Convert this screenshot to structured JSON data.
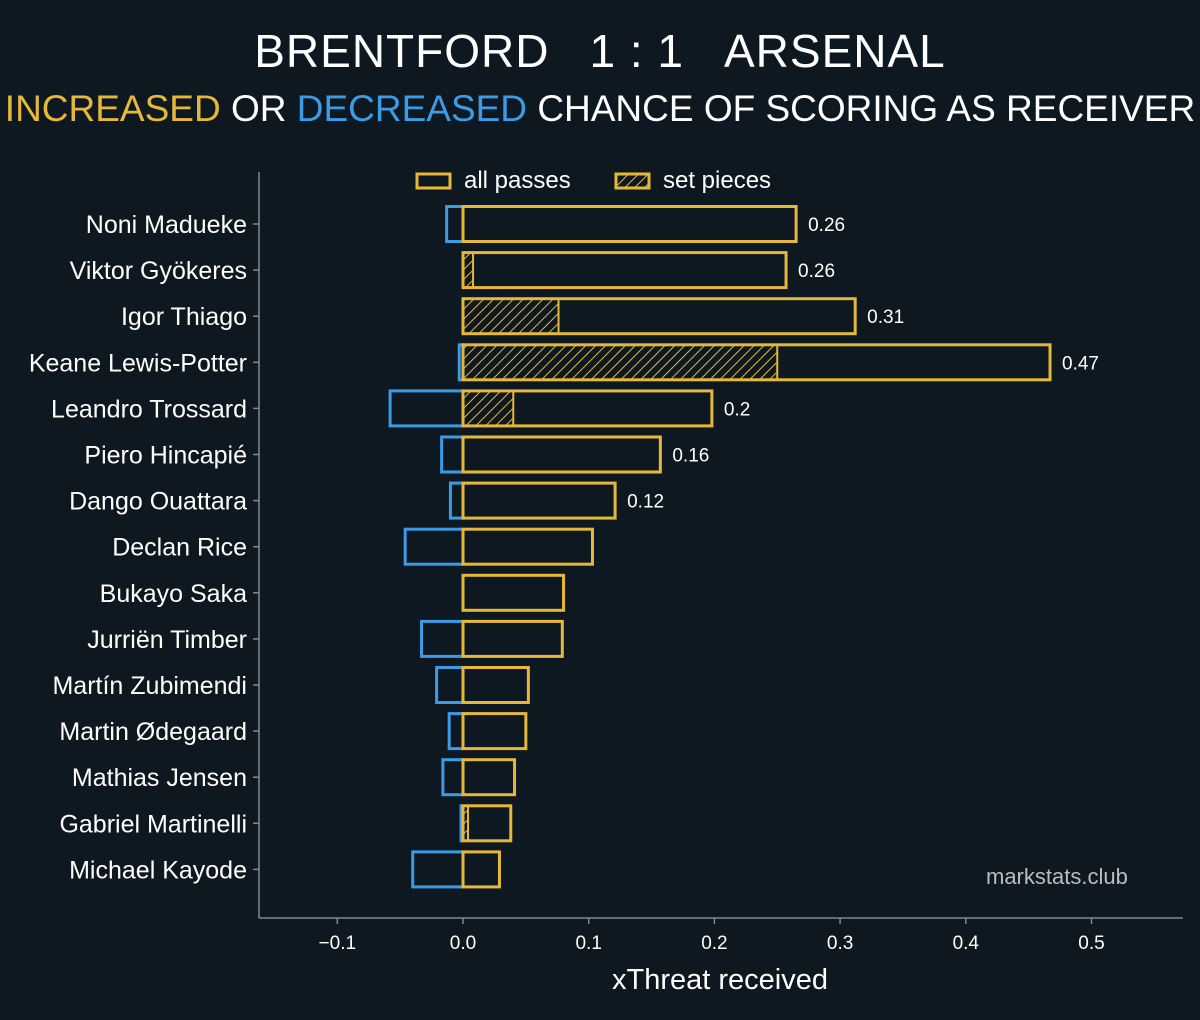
{
  "title": {
    "home": "BRENTFORD",
    "score": "1 : 1",
    "away": "ARSENAL"
  },
  "subtitle": {
    "increased": "INCREASED",
    "or": "OR",
    "decreased": "DECREASED",
    "rest": "CHANCE OF SCORING AS RECEIVER"
  },
  "watermark": "markstats.club",
  "colors": {
    "background": "#0e1820",
    "positive": "#e5b83a",
    "negative": "#3a9be6",
    "axis": "#7d8a8f",
    "text": "#ffffff"
  },
  "chart_data": {
    "type": "bar",
    "orientation": "horizontal",
    "xlabel": "xThreat received",
    "xlim": [
      -0.16,
      0.57
    ],
    "xticks": [
      -0.1,
      0.0,
      0.1,
      0.2,
      0.3,
      0.4,
      0.5
    ],
    "xtick_labels": [
      "−0.1",
      "0.0",
      "0.1",
      "0.2",
      "0.3",
      "0.4",
      "0.5"
    ],
    "legend": {
      "position": "top-center",
      "entries": [
        "all passes",
        "set pieces"
      ]
    },
    "categories": [
      "Noni Madueke",
      "Viktor Gyökeres",
      "Igor Thiago",
      "Keane Lewis-Potter",
      "Leandro Trossard",
      "Piero Hincapié",
      "Dango Ouattara",
      "Declan Rice",
      "Bukayo Saka",
      "Jurriën Timber",
      "Martín Zubimendi",
      "Martin Ødegaard",
      "Mathias Jensen",
      "Gabriel Martinelli",
      "Michael Kayode"
    ],
    "series": [
      {
        "name": "all passes (positive)",
        "values": [
          0.265,
          0.257,
          0.312,
          0.467,
          0.198,
          0.157,
          0.121,
          0.103,
          0.08,
          0.079,
          0.052,
          0.05,
          0.041,
          0.038,
          0.029
        ]
      },
      {
        "name": "all passes (negative)",
        "values": [
          -0.013,
          0.0,
          0.0,
          -0.003,
          -0.058,
          -0.017,
          -0.01,
          -0.046,
          0.0,
          -0.033,
          -0.021,
          -0.011,
          -0.016,
          -0.001,
          -0.04
        ]
      },
      {
        "name": "set pieces",
        "values": [
          0.0,
          0.008,
          0.076,
          0.25,
          0.04,
          0.0,
          0.0,
          0.0,
          0.0,
          0.0,
          0.0,
          0.0,
          0.0,
          0.004,
          0.0
        ]
      }
    ],
    "value_labels": [
      "0.26",
      "0.26",
      "0.31",
      "0.47",
      "0.2",
      "0.16",
      "0.12",
      "",
      "",
      "",
      "",
      "",
      "",
      "",
      ""
    ]
  }
}
